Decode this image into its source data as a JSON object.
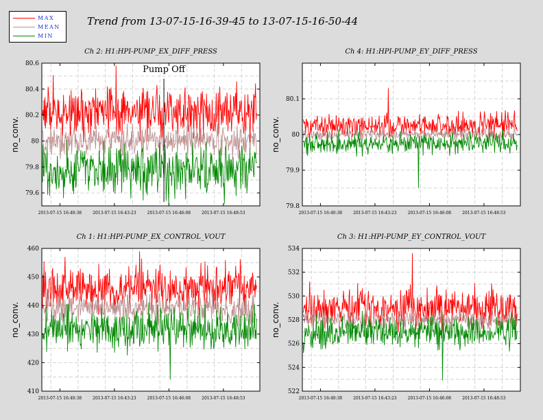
{
  "title": "Trend from 13-07-15-16-39-45 to 13-07-15-16-50-44",
  "legend": [
    {
      "label": "MAX",
      "color": "#ff0000"
    },
    {
      "label": "MEAN",
      "color": "#bc8f8f"
    },
    {
      "label": "MIN",
      "color": "#008800"
    }
  ],
  "chart_data": [
    {
      "type": "line",
      "title": "Ch 2: H1:HPI-PUMP_EX_DIFF_PRESS",
      "ylabel": "no_conv.",
      "ylim": [
        79.5,
        80.6
      ],
      "yticks": [
        "79.6",
        "79.8",
        "80",
        "80.2",
        "80.4",
        "80.6"
      ],
      "xticks": [
        "2013-07-15 16:40:38",
        "2013-07-15 16:43:23",
        "2013-07-15 16:46:08",
        "2013-07-15 16:48:53"
      ],
      "xtick_fracs": [
        0.083,
        0.333,
        0.583,
        0.833
      ],
      "series": [
        {
          "name": "MAX",
          "base": 80.22,
          "noise": 0.1,
          "spike": 80.58
        },
        {
          "name": "MEAN",
          "base": 80.0,
          "noise": 0.06,
          "spike": 80.14
        },
        {
          "name": "MIN",
          "base": 79.78,
          "noise": 0.1,
          "spike": 79.6
        }
      ],
      "annotation": {
        "text": "Pump Off",
        "x_frac": 0.56,
        "y_top": 80.48,
        "y_bottom": 79.53
      },
      "grid": true
    },
    {
      "type": "line",
      "title": "Ch 4: H1:HPI-PUMP_EY_DIFF_PRESS",
      "ylabel": "no_conv.",
      "ylim": [
        79.8,
        80.2
      ],
      "yticks": [
        "79.8",
        "79.9",
        "80",
        "80.1"
      ],
      "xticks": [
        "2013-07-15 16:40:38",
        "2013-07-15 16:43:23",
        "2013-07-15 16:46:08",
        "2013-07-15 16:48:53"
      ],
      "xtick_fracs": [
        0.083,
        0.333,
        0.583,
        0.833
      ],
      "series": [
        {
          "name": "MAX",
          "base": 80.025,
          "noise": 0.017,
          "spike": 80.13
        },
        {
          "name": "MEAN",
          "base": 80.0,
          "noise": 0.008,
          "spike": 80.02
        },
        {
          "name": "MIN",
          "base": 79.975,
          "noise": 0.015,
          "spike": 79.85
        }
      ],
      "grid": true
    },
    {
      "type": "line",
      "title": "Ch 1: H1:HPI-PUMP_EX_CONTROL_VOUT",
      "ylabel": "no_conv.",
      "ylim": [
        410,
        460
      ],
      "yticks": [
        "410",
        "420",
        "430",
        "440",
        "450",
        "460"
      ],
      "xticks": [
        "2013-07-15 16:40:38",
        "2013-07-15 16:43:23",
        "2013-07-15 16:46:08",
        "2013-07-15 16:48:53"
      ],
      "xtick_fracs": [
        0.083,
        0.333,
        0.583,
        0.833
      ],
      "series": [
        {
          "name": "MAX",
          "base": 446,
          "noise": 4,
          "spike": 459
        },
        {
          "name": "MEAN",
          "base": 439,
          "noise": 2.5,
          "spike": 445
        },
        {
          "name": "MIN",
          "base": 432,
          "noise": 3.5,
          "spike": 414
        }
      ],
      "grid": true
    },
    {
      "type": "line",
      "title": "Ch 3: H1:HPI-PUMP_EY_CONTROL_VOUT",
      "ylabel": "no_conv.",
      "ylim": [
        522,
        534
      ],
      "yticks": [
        "522",
        "524",
        "526",
        "528",
        "530",
        "532",
        "534"
      ],
      "xticks": [
        "2013-07-15 16:40:38",
        "2013-07-15 16:43:23",
        "2013-07-15 16:46:08",
        "2013-07-15 16:48:53"
      ],
      "xtick_fracs": [
        0.083,
        0.333,
        0.583,
        0.833
      ],
      "series": [
        {
          "name": "MAX",
          "base": 529,
          "noise": 0.8,
          "spike": 533.6
        },
        {
          "name": "MEAN",
          "base": 528,
          "noise": 0.4,
          "spike": 528.6
        },
        {
          "name": "MIN",
          "base": 527,
          "noise": 0.7,
          "spike": 522.9
        }
      ],
      "grid": true
    }
  ]
}
